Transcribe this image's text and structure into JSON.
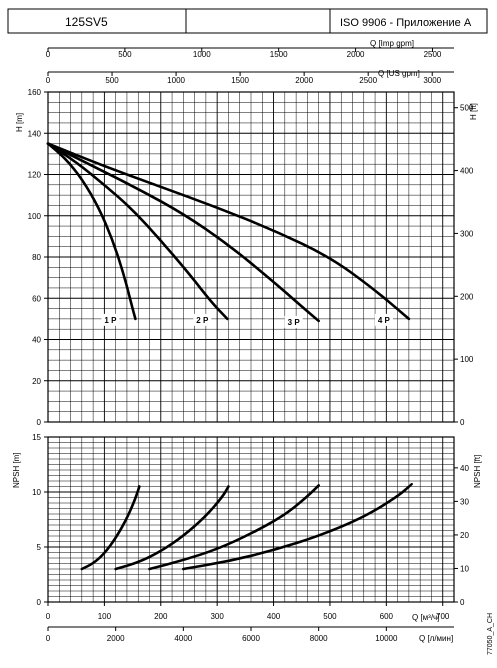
{
  "header": {
    "model": "125SV5",
    "blank": "",
    "standard": "ISO 9906 - Приложение A"
  },
  "side_code": "77050_A_CH",
  "top_axes": {
    "imp_label": "Q [Imp gpm]",
    "imp_ticks": [
      "0",
      "500",
      "1000",
      "1500",
      "2000",
      "2500"
    ],
    "imp_max": 2640,
    "us_label": "Q [US gpm]",
    "us_ticks": [
      "0",
      "500",
      "1000",
      "1500",
      "2000",
      "2500",
      "3000"
    ],
    "us_max": 3170
  },
  "bottom_axes": {
    "m3h_label": "Q [м³/ч]",
    "m3h_ticks": [
      "0",
      "100",
      "200",
      "300",
      "400",
      "500",
      "600",
      "700"
    ],
    "lmin_label": "Q [л/мин]",
    "lmin_ticks": [
      "0",
      "2000",
      "4000",
      "6000",
      "8000",
      "10000"
    ],
    "lmin_max": 12000
  },
  "chart_data": [
    {
      "type": "line",
      "ylabel": "H [m]",
      "y2label": "H [ft]",
      "xlim": [
        0,
        720
      ],
      "ylim": [
        0,
        160
      ],
      "y_ticks": [
        "0",
        "20",
        "40",
        "60",
        "80",
        "100",
        "120",
        "140",
        "160"
      ],
      "y2_ticks": [
        "0",
        "100",
        "200",
        "300",
        "400",
        "500"
      ],
      "y2_max": 525,
      "grid": true,
      "series": [
        {
          "name": "1 P",
          "points": [
            [
              0,
              135
            ],
            [
              30,
              128
            ],
            [
              60,
              118
            ],
            [
              90,
              104
            ],
            [
              115,
              88
            ],
            [
              135,
              71
            ],
            [
              150,
              55
            ],
            [
              155,
              50
            ]
          ]
        },
        {
          "name": "2 P",
          "points": [
            [
              0,
              135
            ],
            [
              50,
              126
            ],
            [
              100,
              115
            ],
            [
              150,
              103
            ],
            [
              200,
              88
            ],
            [
              250,
              72
            ],
            [
              290,
              58
            ],
            [
              318,
              50
            ]
          ]
        },
        {
          "name": "3 P",
          "points": [
            [
              0,
              135
            ],
            [
              80,
              124
            ],
            [
              160,
              113
            ],
            [
              240,
              101
            ],
            [
              320,
              86
            ],
            [
              400,
              68
            ],
            [
              450,
              56
            ],
            [
              480,
              49
            ]
          ]
        },
        {
          "name": "4 P",
          "points": [
            [
              0,
              135
            ],
            [
              100,
              124
            ],
            [
              200,
              114
            ],
            [
              300,
              104
            ],
            [
              400,
              93
            ],
            [
              500,
              80
            ],
            [
              580,
              64
            ],
            [
              640,
              50
            ]
          ]
        }
      ]
    },
    {
      "type": "line",
      "ylabel": "NPSH [m]",
      "y2label": "NPSH [ft]",
      "xlim": [
        0,
        720
      ],
      "ylim": [
        0,
        15
      ],
      "y_ticks": [
        "0",
        "5",
        "10",
        "15"
      ],
      "y2_ticks": [
        "0",
        "10",
        "20",
        "30",
        "40"
      ],
      "y2_max": 49.2,
      "grid": true,
      "series": [
        {
          "name": "1 P",
          "points": [
            [
              60,
              3
            ],
            [
              80,
              3.5
            ],
            [
              100,
              4.4
            ],
            [
              120,
              5.8
            ],
            [
              140,
              7.6
            ],
            [
              155,
              9.4
            ],
            [
              162,
              10.5
            ]
          ]
        },
        {
          "name": "2 P",
          "points": [
            [
              120,
              3
            ],
            [
              160,
              3.6
            ],
            [
              200,
              4.6
            ],
            [
              240,
              6.0
            ],
            [
              280,
              7.8
            ],
            [
              310,
              9.6
            ],
            [
              320,
              10.5
            ]
          ]
        },
        {
          "name": "3 P",
          "points": [
            [
              180,
              3
            ],
            [
              240,
              3.8
            ],
            [
              300,
              4.8
            ],
            [
              360,
              6.2
            ],
            [
              420,
              7.9
            ],
            [
              460,
              9.6
            ],
            [
              480,
              10.6
            ]
          ]
        },
        {
          "name": "4 P",
          "points": [
            [
              240,
              3
            ],
            [
              320,
              3.7
            ],
            [
              400,
              4.7
            ],
            [
              480,
              6.0
            ],
            [
              560,
              7.7
            ],
            [
              620,
              9.6
            ],
            [
              645,
              10.7
            ]
          ]
        }
      ]
    }
  ]
}
